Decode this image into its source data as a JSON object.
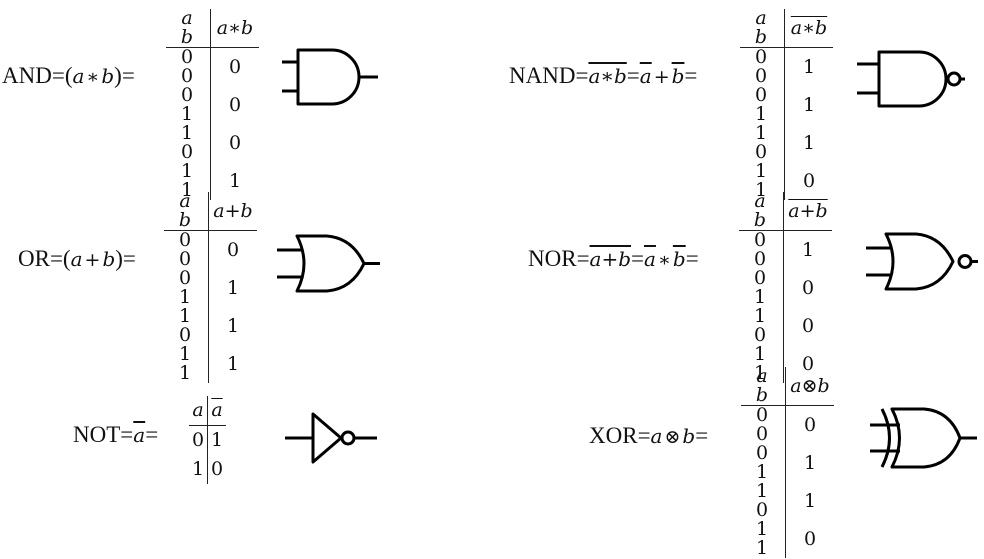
{
  "stroke_color": "#000000",
  "gates": [
    {
      "id": "and",
      "name": "AND",
      "expression_parts": [
        "(",
        "a",
        "∗",
        "b",
        ")"
      ],
      "headers": [
        "a b",
        "a∗b"
      ],
      "rows": [
        [
          "0 0",
          "0"
        ],
        [
          "0 1",
          "0"
        ],
        [
          "1 0",
          "0"
        ],
        [
          "1 1",
          "1"
        ]
      ]
    },
    {
      "id": "nand",
      "name": "NAND",
      "expression_overline": "a∗b",
      "expression_rhs": "a+b",
      "headers": [
        "a b",
        "a∗b"
      ],
      "rows": [
        [
          "0 0",
          "1"
        ],
        [
          "0 1",
          "1"
        ],
        [
          "1 0",
          "1"
        ],
        [
          "1 1",
          "0"
        ]
      ]
    },
    {
      "id": "or",
      "name": "OR",
      "expression_parts": [
        "(",
        "a",
        "+",
        "b",
        ")"
      ],
      "headers": [
        "a b",
        "a+b"
      ],
      "rows": [
        [
          "0 0",
          "0"
        ],
        [
          "0 1",
          "1"
        ],
        [
          "1 0",
          "1"
        ],
        [
          "1 1",
          "1"
        ]
      ]
    },
    {
      "id": "nor",
      "name": "NOR",
      "expression_overline": "a+b",
      "expression_rhs": "a∗b",
      "headers": [
        "a b",
        "a+b"
      ],
      "rows": [
        [
          "0 0",
          "1"
        ],
        [
          "0 1",
          "0"
        ],
        [
          "1 0",
          "0"
        ],
        [
          "1 1",
          "0"
        ]
      ]
    },
    {
      "id": "not",
      "name": "NOT",
      "expression_overline": "a",
      "headers": [
        "a",
        "a"
      ],
      "rows": [
        [
          "0",
          "1"
        ],
        [
          "1",
          "0"
        ]
      ]
    },
    {
      "id": "xor",
      "name": "XOR",
      "expression_parts": [
        "a",
        "⊗",
        "b"
      ],
      "headers": [
        "a b",
        "a⊗b"
      ],
      "rows": [
        [
          "0 0",
          "0"
        ],
        [
          "0 1",
          "1"
        ],
        [
          "1 0",
          "1"
        ],
        [
          "1 1",
          "0"
        ]
      ]
    }
  ]
}
